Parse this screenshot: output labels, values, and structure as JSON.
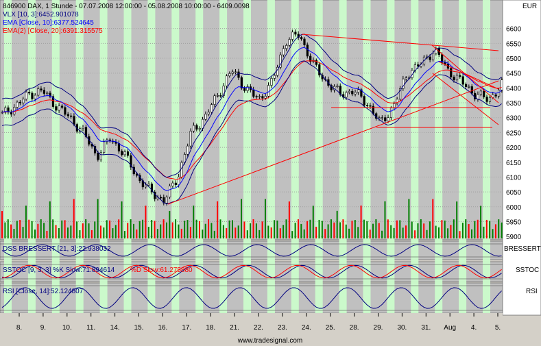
{
  "header": {
    "main": "846900 DAX, 1 Stunde - 07.07.2008 12:00:00 - 05.08.2008 10:00:00 - 6409.0098",
    "vlx": "VLX [10, 3]:6452.901078",
    "ema10": "EMA [Close, 10]:6377.524645",
    "ema20": "EMA(2) [Close, 20]:6391.315575"
  },
  "panes": {
    "price_axis_title": "EUR",
    "bressert_label": "DSS BRESSERT [21, 3]:22.938032",
    "bressert_axis": "BRESSERT",
    "sstoc_label": "SSTOC [9, 3, 3] %K Slow:71.894614",
    "sstoc_d_label": "%D Slow:61.275880",
    "sstoc_axis": "SSTOC",
    "rsi_label": "RSI [Close, 14]:52.124807",
    "rsi_axis": "RSI"
  },
  "watermark": "www.tradesignal.com",
  "colors": {
    "background": "#c0c0c0",
    "session_band": "#ccffcc",
    "ema10": "#0000ff",
    "ema20": "#ff0000",
    "vlx": "#000080",
    "trendline": "#ff0000",
    "volume_up": "#008000",
    "volume_down": "#ff0000"
  },
  "chart_data": {
    "type": "candlestick",
    "instrument": "846900 DAX",
    "interval": "1 Stunde",
    "y_axis_ticks": [
      6600,
      6550,
      6500,
      6450,
      6400,
      6350,
      6300,
      6250,
      6200,
      6150,
      6100,
      6050,
      6000,
      5950,
      5900
    ],
    "ylim": [
      5880,
      6660
    ],
    "x_tick_labels": [
      "8.",
      "9.",
      "10.",
      "11.",
      "14.",
      "15.",
      "16.",
      "17.",
      "18.",
      "21.",
      "22.",
      "23.",
      "24.",
      "25.",
      "28.",
      "29.",
      "30.",
      "31.",
      "Aug",
      "4.",
      "5."
    ],
    "close_path": [
      [
        "7.7",
        6310
      ],
      [
        "8.7",
        6340
      ],
      [
        "8.7",
        6380
      ],
      [
        "9.7",
        6390
      ],
      [
        "10.7",
        6340
      ],
      [
        "10.7",
        6300
      ],
      [
        "11.7",
        6250
      ],
      [
        "11.7",
        6170
      ],
      [
        "14.7",
        6230
      ],
      [
        "14.7",
        6180
      ],
      [
        "15.7",
        6100
      ],
      [
        "15.7",
        6050
      ],
      [
        "16.7",
        6020
      ],
      [
        "16.7",
        6100
      ],
      [
        "17.7",
        6250
      ],
      [
        "18.7",
        6300
      ],
      [
        "21.7",
        6380
      ],
      [
        "21.7",
        6460
      ],
      [
        "22.7",
        6400
      ],
      [
        "22.7",
        6360
      ],
      [
        "23.7",
        6420
      ],
      [
        "23.7",
        6560
      ],
      [
        "24.7",
        6580
      ],
      [
        "24.7",
        6480
      ],
      [
        "25.7",
        6420
      ],
      [
        "25.7",
        6380
      ],
      [
        "28.7",
        6390
      ],
      [
        "28.7",
        6350
      ],
      [
        "29.7",
        6280
      ],
      [
        "29.7",
        6340
      ],
      [
        "30.7",
        6450
      ],
      [
        "30.7",
        6480
      ],
      [
        "31.7",
        6530
      ],
      [
        "31.7",
        6460
      ],
      [
        "1.8",
        6420
      ],
      [
        "4.8",
        6380
      ],
      [
        "4.8",
        6360
      ],
      [
        "5.8",
        6409
      ]
    ],
    "last_values": {
      "close": 6409.0098,
      "vlx": 6452.901078,
      "ema10": 6377.524645,
      "ema20": 6391.315575,
      "dss_bressert": 22.938032,
      "sstoc_k_slow": 71.894614,
      "sstoc_d_slow": 61.27588,
      "rsi": 52.124807
    }
  }
}
